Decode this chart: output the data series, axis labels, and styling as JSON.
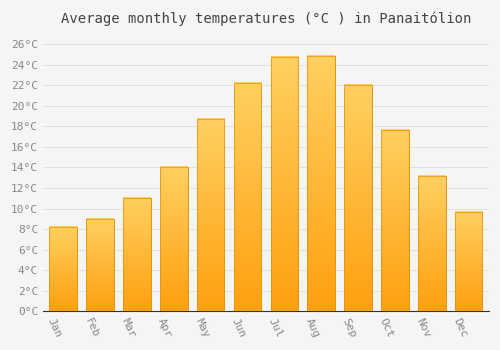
{
  "title": "Average monthly temperatures (°C ) in Panaitólion",
  "months": [
    "Jan",
    "Feb",
    "Mar",
    "Apr",
    "May",
    "Jun",
    "Jul",
    "Aug",
    "Sep",
    "Oct",
    "Nov",
    "Dec"
  ],
  "values": [
    8.2,
    9.0,
    11.0,
    14.0,
    18.7,
    22.2,
    24.7,
    24.8,
    22.0,
    17.6,
    13.2,
    9.7
  ],
  "bar_color_top": "#FFD060",
  "bar_color_bottom": "#FFA010",
  "bar_edge_color": "#E09000",
  "background_color": "#f5f5f5",
  "plot_bg_color": "#f5f5f5",
  "grid_color": "#dddddd",
  "ylim": [
    0,
    27
  ],
  "yticks": [
    0,
    2,
    4,
    6,
    8,
    10,
    12,
    14,
    16,
    18,
    20,
    22,
    24,
    26
  ],
  "ytick_labels": [
    "0°C",
    "2°C",
    "4°C",
    "6°C",
    "8°C",
    "10°C",
    "12°C",
    "14°C",
    "16°C",
    "18°C",
    "20°C",
    "22°C",
    "24°C",
    "26°C"
  ],
  "title_fontsize": 10,
  "tick_fontsize": 8,
  "tick_color": "#888888",
  "title_color": "#444444",
  "xlabel_rotation": -65,
  "bar_width": 0.75
}
